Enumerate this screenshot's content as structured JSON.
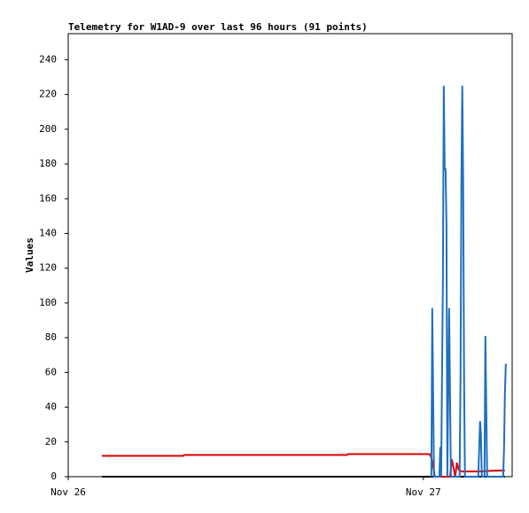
{
  "chart_data": {
    "type": "line",
    "title": "Telemetry for W1AD-9 over last 96 hours (91 points)",
    "y_label": "Values",
    "xlim": [
      0,
      30
    ],
    "xticks": [
      {
        "value": 0,
        "label": "Nov 26"
      },
      {
        "value": 24,
        "label": "Nov 27"
      }
    ],
    "ylim": [
      0,
      255
    ],
    "yticks": [
      0,
      20,
      40,
      60,
      80,
      100,
      120,
      140,
      160,
      180,
      200,
      220,
      240
    ],
    "series": [
      {
        "color": "#000000",
        "x": [
          2.27,
          29.51
        ],
        "values": [
          0,
          0
        ]
      },
      {
        "color": "#dd0000",
        "x": [
          2.27,
          7.78,
          7.84,
          18.85,
          18.91,
          24.42,
          24.54,
          24.66,
          24.78,
          25.8,
          25.92,
          26.04,
          26.15,
          26.27,
          26.39,
          26.57,
          27.71,
          28.91,
          29.51
        ],
        "values": [
          12,
          12,
          12.5,
          12.5,
          13,
          13,
          11,
          6,
          0,
          0,
          10,
          5,
          0,
          8,
          4,
          3,
          3,
          3.5,
          3.5
        ]
      },
      {
        "color": "#1f6fbf",
        "x": [
          24.54,
          24.6,
          24.66,
          24.72,
          25.08,
          25.14,
          25.2,
          25.32,
          25.38,
          25.44,
          25.5,
          25.56,
          25.62,
          25.74,
          25.8,
          25.86,
          26.45,
          26.51,
          26.57,
          26.63,
          26.69,
          26.75,
          26.81,
          27.71,
          27.77,
          27.83,
          27.89,
          27.95,
          28.13,
          28.19,
          28.25,
          28.31,
          29.39,
          29.45,
          29.51,
          29.57
        ],
        "values": [
          0,
          97,
          48,
          0,
          0,
          17,
          0,
          113,
          225,
          177,
          177,
          145,
          0,
          97,
          48,
          0,
          0,
          57,
          169,
          225,
          169,
          57,
          0,
          0,
          16,
          32,
          24,
          0,
          0,
          81,
          40,
          0,
          0,
          16,
          48,
          65
        ]
      }
    ]
  }
}
